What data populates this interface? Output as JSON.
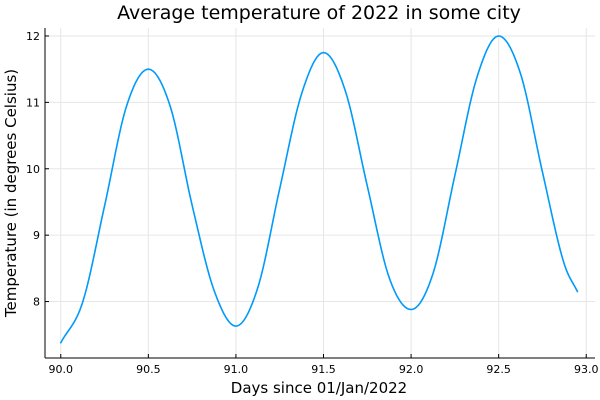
{
  "chart_data": {
    "type": "line",
    "title": "Average temperature of 2022 in some city",
    "xlabel": "Days since 01/Jan/2022",
    "ylabel": "Temperature (in degrees Celsius)",
    "xlim": [
      89.91,
      93.05
    ],
    "ylim": [
      7.15,
      12.12
    ],
    "x_ticks": [
      90.0,
      90.5,
      91.0,
      91.5,
      92.0,
      92.5,
      93.0
    ],
    "x_tick_labels": [
      "90.0",
      "90.5",
      "91.0",
      "91.5",
      "92.0",
      "92.5",
      "93.0"
    ],
    "y_ticks": [
      8,
      9,
      10,
      11,
      12
    ],
    "y_tick_labels": [
      "8",
      "9",
      "10",
      "11",
      "12"
    ],
    "grid": true,
    "legend": "none",
    "series": [
      {
        "color": "#009AFA",
        "x": [
          90.0,
          90.125,
          90.25,
          90.375,
          90.5,
          90.625,
          90.75,
          90.875,
          91.0,
          91.125,
          91.25,
          91.375,
          91.5,
          91.625,
          91.75,
          91.875,
          92.0,
          92.125,
          92.25,
          92.375,
          92.5,
          92.625,
          92.75,
          92.875,
          92.95
        ],
        "y": [
          7.38,
          7.99,
          9.44,
          10.94,
          11.5,
          10.94,
          9.45,
          8.17,
          7.63,
          8.21,
          9.7,
          11.13,
          11.75,
          11.17,
          9.74,
          8.36,
          7.88,
          8.42,
          9.9,
          11.37,
          12.0,
          11.43,
          9.95,
          8.56,
          8.15
        ]
      }
    ]
  }
}
